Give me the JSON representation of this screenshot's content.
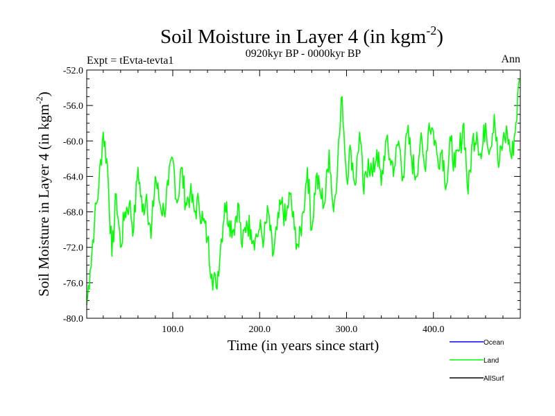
{
  "chart_data": {
    "type": "line",
    "title": "Soil Moisture in Layer 4 (in kgm",
    "title_superscript": "-2",
    "title_close": ")",
    "subtitle": "0920kyr BP - 0000kyr BP",
    "left_label": "Expt = tEvta-tevta1",
    "right_label": "Ann",
    "xlabel": "Time (in years since start)",
    "ylabel": "Soil Moisture in Layer 4 (in kgm",
    "ylabel_superscript": "-2",
    "ylabel_close": ")",
    "xlim": [
      1,
      500
    ],
    "ylim": [
      -80,
      -52
    ],
    "xticks": [
      100,
      200,
      300,
      400
    ],
    "xtick_labels": [
      "100.0",
      "200.0",
      "300.0",
      "400.0"
    ],
    "yticks": [
      -80,
      -76,
      -72,
      -68,
      -64,
      -60,
      -56,
      -52
    ],
    "ytick_labels": [
      "-80.0",
      "-76.0",
      "-72.0",
      "-68.0",
      "-64.0",
      "-60.0",
      "-56.0",
      "-52.0"
    ],
    "legend": [
      {
        "name": "Ocean",
        "color": "#0000ff"
      },
      {
        "name": "Land",
        "color": "#00ff00"
      },
      {
        "name": "AllSurf",
        "color": "#000000"
      }
    ],
    "series": [
      {
        "name": "Land",
        "color": "#00ff00",
        "x": [
          1,
          5,
          10,
          15,
          20,
          25,
          30,
          35,
          40,
          45,
          50,
          55,
          60,
          65,
          70,
          75,
          80,
          85,
          90,
          95,
          100,
          105,
          110,
          115,
          120,
          125,
          130,
          135,
          140,
          145,
          150,
          155,
          160,
          165,
          170,
          175,
          180,
          185,
          190,
          195,
          200,
          205,
          210,
          215,
          220,
          225,
          230,
          235,
          240,
          245,
          250,
          255,
          260,
          265,
          270,
          275,
          280,
          285,
          290,
          295,
          300,
          305,
          310,
          315,
          320,
          325,
          330,
          335,
          340,
          345,
          350,
          355,
          360,
          365,
          370,
          375,
          380,
          385,
          390,
          395,
          400,
          405,
          410,
          415,
          420,
          425,
          430,
          435,
          440,
          445,
          450,
          455,
          460,
          465,
          470,
          475,
          480,
          485,
          490,
          495,
          499
        ],
        "values": [
          -78.5,
          -74.5,
          -69,
          -65,
          -59,
          -63,
          -73,
          -66,
          -72,
          -68,
          -67,
          -70,
          -63,
          -68,
          -66,
          -71,
          -64,
          -67,
          -68,
          -65,
          -62,
          -67,
          -63,
          -67,
          -66,
          -68,
          -67,
          -69,
          -71,
          -75,
          -76.5,
          -72,
          -67,
          -69,
          -70,
          -67,
          -72,
          -69,
          -70,
          -71,
          -70,
          -71,
          -68,
          -73,
          -70,
          -67,
          -69,
          -66,
          -70,
          -72,
          -68,
          -63,
          -70,
          -64,
          -66,
          -67,
          -61,
          -68,
          -62,
          -55,
          -64,
          -61,
          -65,
          -59,
          -66,
          -62,
          -64,
          -61,
          -65,
          -60,
          -62,
          -63,
          -60,
          -64,
          -59,
          -62,
          -64,
          -60,
          -63,
          -58,
          -59,
          -62,
          -61,
          -65,
          -60,
          -63,
          -61,
          -58,
          -66,
          -60,
          -59,
          -62,
          -58,
          -61,
          -57,
          -63,
          -60,
          -59,
          -62,
          -58,
          -53
        ]
      },
      {
        "name": "Ocean",
        "color": "#0000ff",
        "x": [],
        "values": []
      },
      {
        "name": "AllSurf",
        "color": "#000000",
        "x": [],
        "values": []
      }
    ]
  }
}
